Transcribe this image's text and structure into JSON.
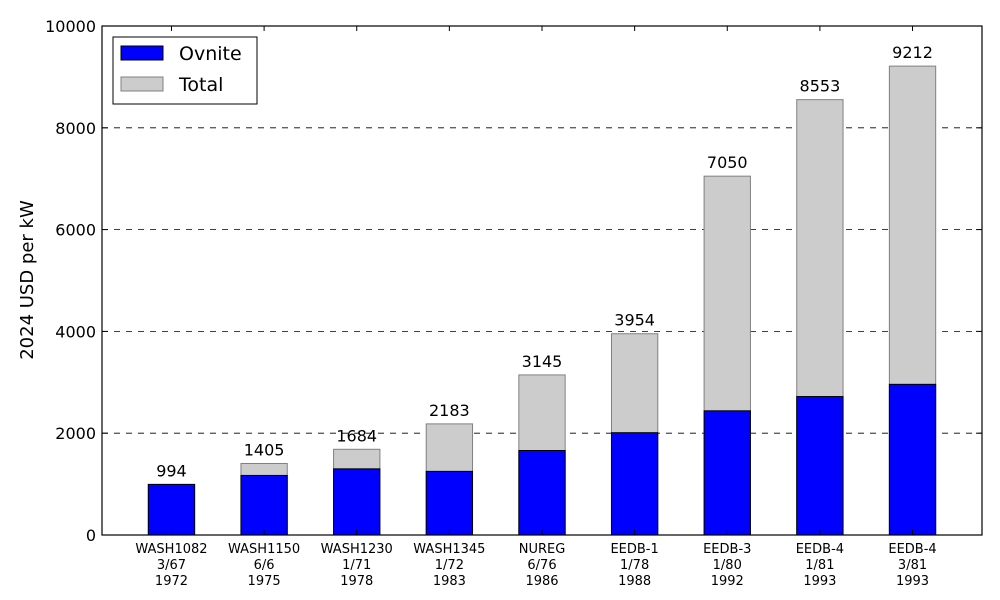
{
  "chart_data": {
    "type": "bar",
    "stacked_overlay": true,
    "ylabel": "2024 USD per kW",
    "xlabel": "",
    "ylim": [
      0,
      10000
    ],
    "yticks": [
      0,
      2000,
      4000,
      6000,
      8000,
      10000
    ],
    "grid": "horizontal dashed",
    "legend_position": "top-left",
    "categories": [
      [
        "WASH1082",
        "3/67",
        "1972"
      ],
      [
        "WASH1150",
        "6/6",
        "1975"
      ],
      [
        "WASH1230",
        "1/71",
        "1978"
      ],
      [
        "WASH1345",
        "1/72",
        "1983"
      ],
      [
        "NUREG",
        "6/76",
        "1986"
      ],
      [
        "EEDB-1",
        "1/78",
        "1988"
      ],
      [
        "EEDB-3",
        "1/80",
        "1992"
      ],
      [
        "EEDB-4",
        "1/81",
        "1993"
      ],
      [
        "EEDB-4",
        "3/81",
        "1993"
      ]
    ],
    "series": [
      {
        "name": "Ovnite",
        "color": "#0000ff",
        "values": [
          994,
          1170,
          1300,
          1250,
          1660,
          2010,
          2440,
          2720,
          2960
        ]
      },
      {
        "name": "Total",
        "color": "#cccccc",
        "values": [
          994,
          1405,
          1684,
          2183,
          3145,
          3954,
          7050,
          8553,
          9212
        ]
      }
    ],
    "data_labels": [
      "994",
      "1405",
      "1684",
      "2183",
      "3145",
      "3954",
      "7050",
      "8553",
      "9212"
    ]
  }
}
